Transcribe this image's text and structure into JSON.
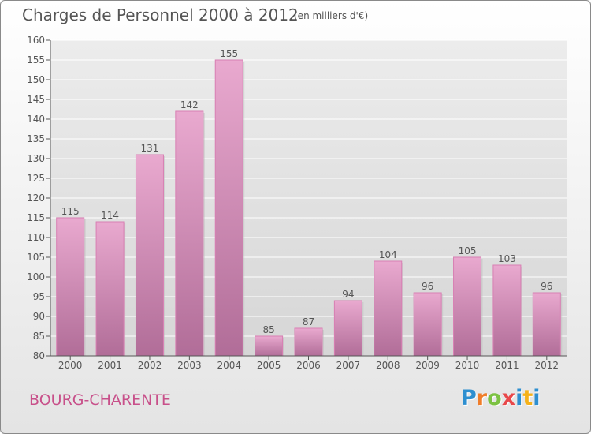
{
  "header": {
    "title": "Charges de Personnel 2000 à 2012",
    "subtitle": "(en milliers d'€)"
  },
  "footer": {
    "commune": "BOURG-CHARENTE",
    "logo_letters": [
      "P",
      "r",
      "o",
      "x",
      "i",
      "t",
      "i"
    ],
    "logo_colors": [
      "#2e8fd0",
      "#f07d2a",
      "#7cc242",
      "#e8484a",
      "#2e8fd0",
      "#f5b21a",
      "#2e8fd0"
    ]
  },
  "colors": {
    "bar_top": "#e9a9cf",
    "bar_bottom": "#b16d98",
    "axis": "#555555",
    "grid": "#ffffff"
  },
  "chart_data": {
    "type": "bar",
    "title": "Charges de Personnel 2000 à 2012",
    "subtitle": "(en milliers d'€)",
    "categories": [
      "2000",
      "2001",
      "2002",
      "2003",
      "2004",
      "2005",
      "2006",
      "2007",
      "2008",
      "2009",
      "2010",
      "2011",
      "2012"
    ],
    "values": [
      115,
      114,
      131,
      142,
      155,
      85,
      87,
      94,
      104,
      96,
      105,
      103,
      96
    ],
    "ylim": [
      80,
      160
    ],
    "yticks": [
      80,
      85,
      90,
      95,
      100,
      105,
      110,
      115,
      120,
      125,
      130,
      135,
      140,
      145,
      150,
      155,
      160
    ],
    "grid": true,
    "data_labels": true
  }
}
